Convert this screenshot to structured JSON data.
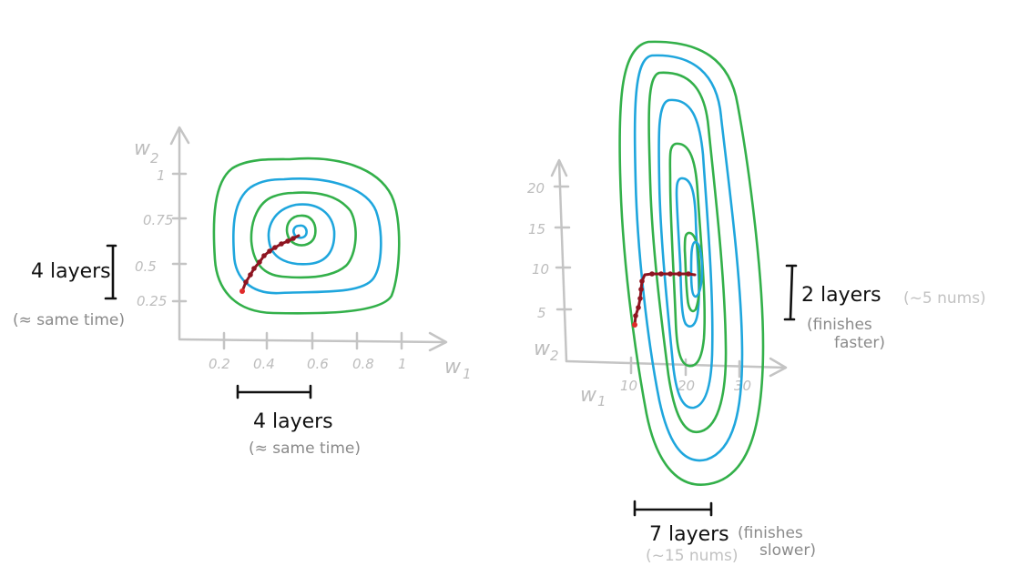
{
  "left_plot": {
    "axes": {
      "x_name": "w",
      "x_sub": "1",
      "y_name": "w",
      "y_sub": "2"
    },
    "x_ticks": [
      "0.2",
      "0.4",
      "0.6",
      "0.8",
      "1"
    ],
    "y_ticks": [
      "1",
      "0.75",
      "0.5",
      "0.25"
    ],
    "vertical_label": {
      "main": "4 layers",
      "note": "(≈ same time)"
    },
    "horizontal_label": {
      "main": "4 layers",
      "note": "(≈ same time)"
    }
  },
  "right_plot": {
    "axes": {
      "x_name": "w",
      "x_sub": "1",
      "y_name": "w",
      "y_sub": "2"
    },
    "x_ticks": [
      "10",
      "20",
      "30"
    ],
    "y_ticks": [
      "20",
      "15",
      "10",
      "5"
    ],
    "vertical_label": {
      "main": "2 layers",
      "runs": "(~5 nums)",
      "note_line1": "(finishes",
      "note_line2": "faster)"
    },
    "horizontal_label": {
      "main": "7 layers",
      "runs": "(~15 nums)",
      "note_line1": "(finishes",
      "note_line2": "slower)"
    }
  },
  "colors": {
    "axis": "#c4c4c4",
    "contour_outer": "#33b04a",
    "contour_inner": "#1fa6dd",
    "optimization_path": "#8e1420",
    "start_point": "#e02a2a"
  }
}
